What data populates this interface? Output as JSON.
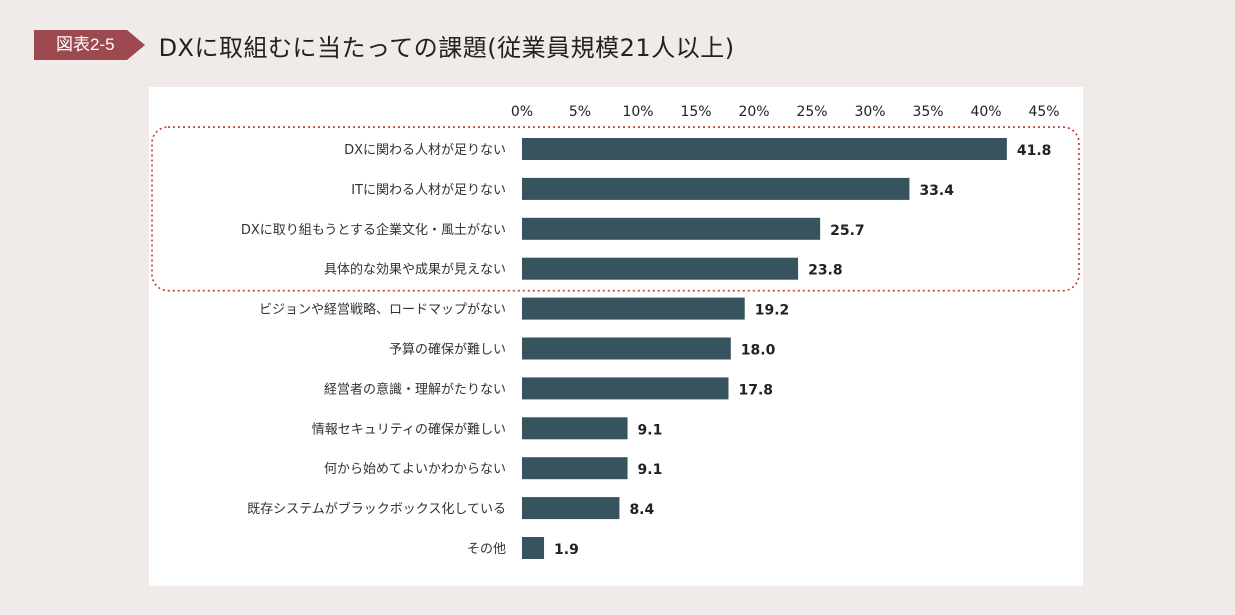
{
  "figure": {
    "badge": "図表2-5",
    "title": "DXに取組むに当たっての課題(従業員規模21人以上)"
  },
  "colors": {
    "bar": "#37535e",
    "badge": "#9c4a4f",
    "highlight": "#c0392b",
    "background": "#f0ebe8"
  },
  "chart_data": {
    "type": "bar",
    "orientation": "horizontal",
    "title": "",
    "xlabel": "",
    "ylabel": "",
    "xlim": [
      0,
      45
    ],
    "ticks": [
      0,
      5,
      10,
      15,
      20,
      25,
      30,
      35,
      40,
      45
    ],
    "tick_labels": [
      "0%",
      "5%",
      "10%",
      "15%",
      "20%",
      "25%",
      "30%",
      "35%",
      "40%",
      "45%"
    ],
    "categories": [
      "DXに関わる人材が足りない",
      "ITに関わる人材が足りない",
      "DXに取り組もうとする企業文化・風土がない",
      "具体的な効果や成果が見えない",
      "ビジョンや経営戦略、ロードマップがない",
      "予算の確保が難しい",
      "経営者の意識・理解がたりない",
      "情報セキュリティの確保が難しい",
      "何から始めてよいかわからない",
      "既存システムがブラックボックス化している",
      "その他"
    ],
    "values": [
      41.8,
      33.4,
      25.7,
      23.8,
      19.2,
      18.0,
      17.8,
      9.1,
      9.1,
      8.4,
      1.9
    ],
    "value_labels": [
      "41.8",
      "33.4",
      "25.7",
      "23.8",
      "19.2",
      "18.0",
      "17.8",
      "9.1",
      "9.1",
      "8.4",
      "1.9"
    ],
    "highlighted_top": 4,
    "grid": false
  }
}
